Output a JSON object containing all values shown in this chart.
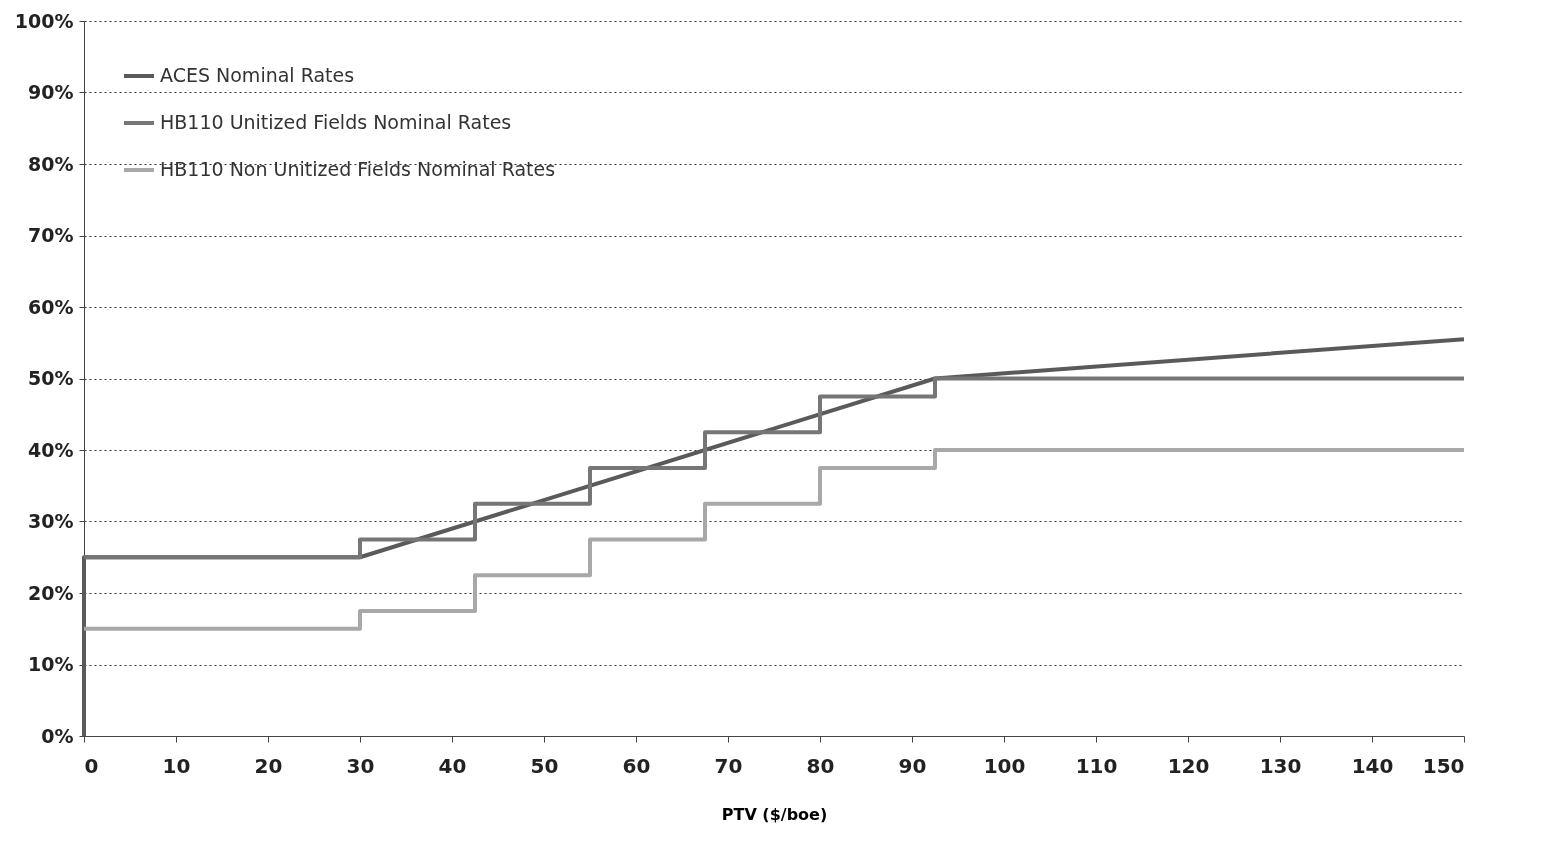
{
  "chart_data": {
    "type": "line",
    "xlabel": "PTV ($/boe)",
    "xlim": [
      0,
      150
    ],
    "xticks": [
      0,
      10,
      20,
      30,
      40,
      50,
      60,
      70,
      80,
      90,
      100,
      110,
      120,
      130,
      140,
      150
    ],
    "ylim": [
      0,
      100
    ],
    "yticks": [
      {
        "value": 0,
        "label": "0%"
      },
      {
        "value": 10,
        "label": "10%"
      },
      {
        "value": 20,
        "label": "20%"
      },
      {
        "value": 30,
        "label": "30%"
      },
      {
        "value": 40,
        "label": "40%"
      },
      {
        "value": 50,
        "label": "50%"
      },
      {
        "value": 60,
        "label": "60%"
      },
      {
        "value": 70,
        "label": "70%"
      },
      {
        "value": 80,
        "label": "80%"
      },
      {
        "value": 90,
        "label": "90%"
      },
      {
        "value": 100,
        "label": "100%"
      }
    ],
    "grid": "y",
    "legend": "top left",
    "series": [
      {
        "name": "ACES Nominal  Rates",
        "color": "#5a5a5a",
        "x": [
          0,
          0,
          30,
          92.5,
          150
        ],
        "values": [
          0,
          25,
          25,
          50,
          55.5
        ]
      },
      {
        "name": "HB110 Unitized  Fields Nominal  Rates",
        "color": "#767676",
        "type": "step",
        "x": [
          0,
          30,
          42.5,
          55,
          67.5,
          80,
          92.5,
          150
        ],
        "values": [
          25,
          27.5,
          32.5,
          37.5,
          42.5,
          47.5,
          50,
          50
        ]
      },
      {
        "name": "HB110 Non  Unitized  Fields Nominal  Rates",
        "color": "#a8a8a8",
        "type": "step",
        "x": [
          0,
          30,
          42.5,
          55,
          67.5,
          80,
          92.5,
          150
        ],
        "values": [
          15,
          17.5,
          22.5,
          27.5,
          32.5,
          37.5,
          40,
          40
        ]
      }
    ]
  }
}
